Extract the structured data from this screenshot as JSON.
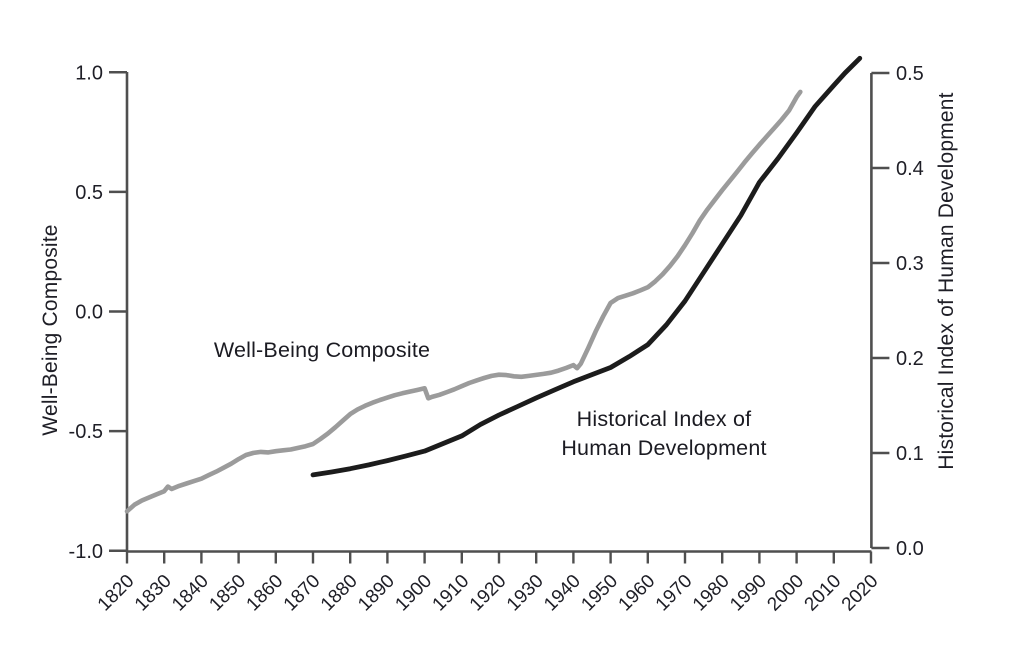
{
  "chart_data": {
    "type": "line",
    "title": "",
    "x_axis": {
      "range": [
        1820,
        2020
      ],
      "tick_step": 10,
      "tick_labels": [
        "1820",
        "1830",
        "1840",
        "1850",
        "1860",
        "1870",
        "1880",
        "1890",
        "1900",
        "1910",
        "1920",
        "1930",
        "1940",
        "1950",
        "1960",
        "1970",
        "1980",
        "1990",
        "2000",
        "2010",
        "2020"
      ],
      "label_rotation_deg": -45
    },
    "left_axis": {
      "title": "Well-Being Composite",
      "range": [
        -1.0,
        1.0
      ],
      "tick_values": [
        1.0,
        0.5,
        0.0,
        -0.5,
        -1.0
      ],
      "tick_labels": [
        "1.0",
        "0.5",
        "0.0",
        "-0.5",
        "-1.0"
      ]
    },
    "right_axis": {
      "title": "Historical Index of Human Development",
      "range": [
        0.0,
        0.5
      ],
      "tick_values": [
        0.5,
        0.4,
        0.3,
        0.2,
        0.1,
        0.0
      ],
      "tick_labels": [
        "0.5",
        "0.4",
        "0.3",
        "0.2",
        "0.1",
        "0.0"
      ]
    },
    "grid": false,
    "legend": "inline-annotations",
    "series": [
      {
        "name": "Well-Being Composite",
        "axis": "left",
        "color": "#9b9b9b",
        "stroke_width": 4.6,
        "points": [
          [
            1820,
            -0.835
          ],
          [
            1822,
            -0.808
          ],
          [
            1824,
            -0.79
          ],
          [
            1826,
            -0.777
          ],
          [
            1828,
            -0.764
          ],
          [
            1830,
            -0.751
          ],
          [
            1831,
            -0.732
          ],
          [
            1832,
            -0.742
          ],
          [
            1834,
            -0.729
          ],
          [
            1836,
            -0.719
          ],
          [
            1838,
            -0.709
          ],
          [
            1840,
            -0.699
          ],
          [
            1842,
            -0.684
          ],
          [
            1844,
            -0.669
          ],
          [
            1846,
            -0.653
          ],
          [
            1848,
            -0.636
          ],
          [
            1850,
            -0.617
          ],
          [
            1852,
            -0.6
          ],
          [
            1854,
            -0.591
          ],
          [
            1856,
            -0.587
          ],
          [
            1858,
            -0.589
          ],
          [
            1860,
            -0.584
          ],
          [
            1862,
            -0.58
          ],
          [
            1864,
            -0.577
          ],
          [
            1866,
            -0.57
          ],
          [
            1868,
            -0.563
          ],
          [
            1870,
            -0.554
          ],
          [
            1872,
            -0.533
          ],
          [
            1874,
            -0.51
          ],
          [
            1876,
            -0.484
          ],
          [
            1878,
            -0.456
          ],
          [
            1880,
            -0.429
          ],
          [
            1882,
            -0.409
          ],
          [
            1884,
            -0.394
          ],
          [
            1886,
            -0.381
          ],
          [
            1888,
            -0.37
          ],
          [
            1890,
            -0.36
          ],
          [
            1892,
            -0.35
          ],
          [
            1894,
            -0.342
          ],
          [
            1896,
            -0.335
          ],
          [
            1898,
            -0.328
          ],
          [
            1900,
            -0.321
          ],
          [
            1901,
            -0.363
          ],
          [
            1902,
            -0.357
          ],
          [
            1904,
            -0.348
          ],
          [
            1906,
            -0.337
          ],
          [
            1908,
            -0.325
          ],
          [
            1910,
            -0.312
          ],
          [
            1912,
            -0.299
          ],
          [
            1914,
            -0.288
          ],
          [
            1916,
            -0.278
          ],
          [
            1918,
            -0.269
          ],
          [
            1920,
            -0.264
          ],
          [
            1922,
            -0.266
          ],
          [
            1924,
            -0.271
          ],
          [
            1926,
            -0.273
          ],
          [
            1928,
            -0.269
          ],
          [
            1930,
            -0.265
          ],
          [
            1932,
            -0.261
          ],
          [
            1934,
            -0.256
          ],
          [
            1936,
            -0.247
          ],
          [
            1938,
            -0.236
          ],
          [
            1940,
            -0.224
          ],
          [
            1941,
            -0.237
          ],
          [
            1942,
            -0.218
          ],
          [
            1944,
            -0.152
          ],
          [
            1946,
            -0.083
          ],
          [
            1948,
            -0.02
          ],
          [
            1950,
            0.036
          ],
          [
            1952,
            0.056
          ],
          [
            1954,
            0.066
          ],
          [
            1956,
            0.076
          ],
          [
            1958,
            0.088
          ],
          [
            1960,
            0.101
          ],
          [
            1962,
            0.126
          ],
          [
            1964,
            0.156
          ],
          [
            1966,
            0.191
          ],
          [
            1968,
            0.231
          ],
          [
            1970,
            0.277
          ],
          [
            1972,
            0.327
          ],
          [
            1974,
            0.381
          ],
          [
            1976,
            0.426
          ],
          [
            1978,
            0.467
          ],
          [
            1980,
            0.507
          ],
          [
            1982,
            0.545
          ],
          [
            1984,
            0.584
          ],
          [
            1986,
            0.623
          ],
          [
            1988,
            0.661
          ],
          [
            1990,
            0.697
          ],
          [
            1992,
            0.732
          ],
          [
            1994,
            0.767
          ],
          [
            1996,
            0.802
          ],
          [
            1998,
            0.841
          ],
          [
            2000,
            0.896
          ],
          [
            2001,
            0.918
          ]
        ]
      },
      {
        "name": "Historical Index of Human Development",
        "axis": "right",
        "color": "#1c1c1c",
        "stroke_width": 4.8,
        "points": [
          [
            1870,
            0.077
          ],
          [
            1875,
            0.08
          ],
          [
            1880,
            0.0835
          ],
          [
            1885,
            0.0875
          ],
          [
            1890,
            0.092
          ],
          [
            1895,
            0.097
          ],
          [
            1900,
            0.102
          ],
          [
            1905,
            0.11
          ],
          [
            1910,
            0.118
          ],
          [
            1915,
            0.13
          ],
          [
            1920,
            0.14
          ],
          [
            1925,
            0.149
          ],
          [
            1930,
            0.158
          ],
          [
            1935,
            0.1665
          ],
          [
            1940,
            0.175
          ],
          [
            1945,
            0.1825
          ],
          [
            1950,
            0.19
          ],
          [
            1955,
            0.2015
          ],
          [
            1960,
            0.214
          ],
          [
            1965,
            0.235
          ],
          [
            1970,
            0.26
          ],
          [
            1975,
            0.29
          ],
          [
            1980,
            0.32
          ],
          [
            1985,
            0.35
          ],
          [
            1990,
            0.385
          ],
          [
            1995,
            0.41
          ],
          [
            2000,
            0.437
          ],
          [
            2005,
            0.465
          ],
          [
            2010,
            0.487
          ],
          [
            2013,
            0.5
          ],
          [
            2017,
            0.5155
          ]
        ]
      }
    ],
    "annotations": [
      {
        "text": "Well-Being Composite",
        "for_series": "Well-Being Composite"
      },
      {
        "text": "Historical Index of\nHuman Development",
        "for_series": "Historical Index of Human Development"
      }
    ],
    "colors": {
      "axis": "#4f4f4f",
      "tick_text": "#1e1e26",
      "gray_line": "#9b9b9b",
      "black_line": "#1c1c1c",
      "background": "#ffffff"
    }
  }
}
